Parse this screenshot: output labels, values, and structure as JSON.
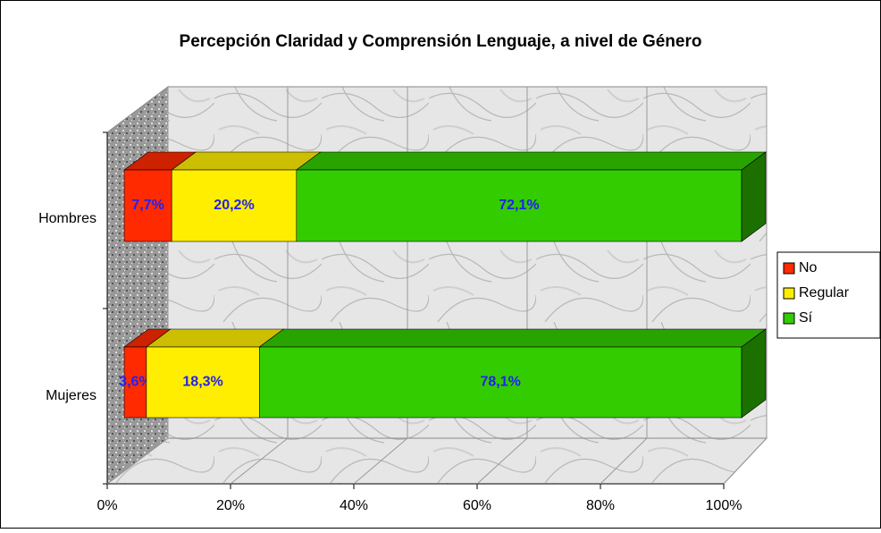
{
  "chart_data": {
    "type": "bar",
    "orientation": "horizontal",
    "stacked": true,
    "title": "Percepción Claridad y Comprensión Lenguaje, a nivel de Género",
    "categories": [
      "Hombres",
      "Mujeres"
    ],
    "series": [
      {
        "name": "No",
        "color": "#ff2a00",
        "values": [
          7.7,
          3.6
        ],
        "value_labels": [
          "7,7%",
          "3,6%"
        ]
      },
      {
        "name": "Regular",
        "color": "#ffee00",
        "values": [
          20.2,
          18.3
        ],
        "value_labels": [
          "20,2%",
          "18,3%"
        ]
      },
      {
        "name": "Sí",
        "color": "#33cc00",
        "values": [
          72.1,
          78.1
        ],
        "value_labels": [
          "72,1%",
          "78,1%"
        ]
      }
    ],
    "xlim": [
      0,
      100
    ],
    "xticks": [
      {
        "value": 0,
        "label": "0%"
      },
      {
        "value": 20,
        "label": "20%"
      },
      {
        "value": 40,
        "label": "40%"
      },
      {
        "value": 60,
        "label": "60%"
      },
      {
        "value": 80,
        "label": "80%"
      },
      {
        "value": 100,
        "label": "100%"
      }
    ],
    "grid": true,
    "legend": "right"
  }
}
